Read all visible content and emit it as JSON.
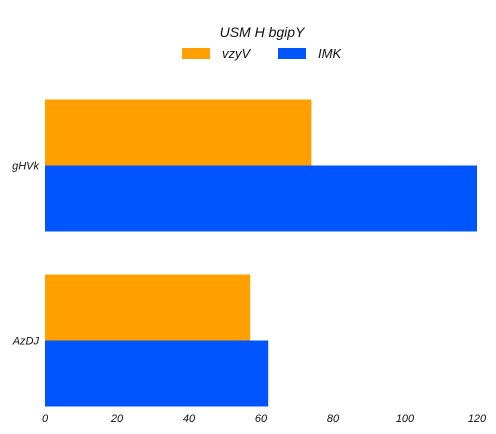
{
  "chart_data": {
    "type": "bar",
    "orientation": "horizontal",
    "title": "USM H  bgipY",
    "categories": [
      "gHVk",
      "AzDJ"
    ],
    "series": [
      {
        "name": "vzyV",
        "color": "#ffa000",
        "values": [
          74,
          57
        ]
      },
      {
        "name": "IMK",
        "color": "#0055ff",
        "values": [
          120,
          62
        ]
      }
    ],
    "xlim": [
      0,
      120
    ],
    "xticks": [
      0,
      20,
      40,
      60,
      80,
      100,
      120
    ],
    "grid": false,
    "legend_position": "top"
  }
}
